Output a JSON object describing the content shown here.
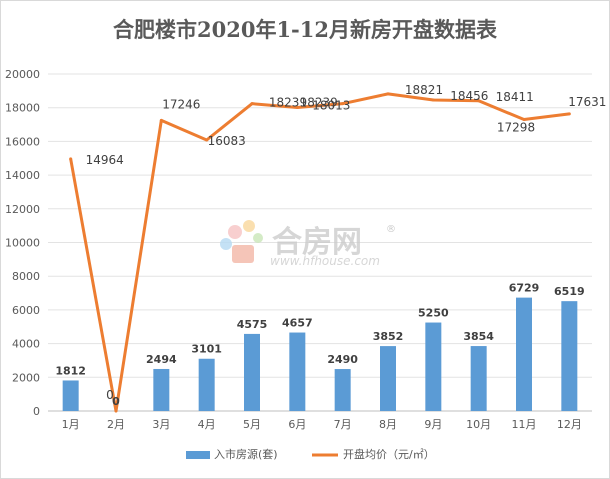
{
  "chart_data": {
    "type": "bar+line",
    "title": "合肥楼市2020年1-12月新房开盘数据表",
    "categories": [
      "1月",
      "2月",
      "3月",
      "4月",
      "5月",
      "6月",
      "7月",
      "8月",
      "9月",
      "10月",
      "11月",
      "12月"
    ],
    "series": [
      {
        "name": "入市房源(套)",
        "type": "bar",
        "color": "#5b9bd5",
        "values": [
          1812,
          0,
          2494,
          3101,
          4575,
          4657,
          2490,
          3852,
          5250,
          3854,
          6729,
          6519
        ]
      },
      {
        "name": "开盘均价（元/㎡）",
        "type": "line",
        "color": "#ed7d31",
        "values": [
          14964,
          0,
          17246,
          16083,
          18239,
          18013,
          18239,
          18821,
          18456,
          18411,
          17298,
          17631
        ]
      }
    ],
    "ylim": [
      0,
      20000
    ],
    "yticks": [
      0,
      2000,
      4000,
      6000,
      8000,
      10000,
      12000,
      14000,
      16000,
      18000,
      20000
    ],
    "grid": true,
    "legend_position": "bottom"
  },
  "watermark": {
    "brand": "合房网",
    "url": "www.hfhouse.com"
  }
}
